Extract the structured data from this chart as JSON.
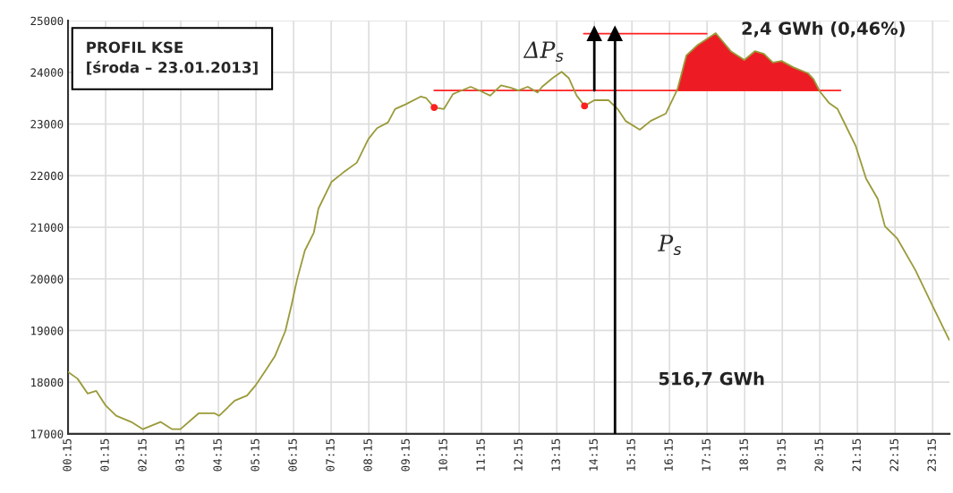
{
  "chart_data": {
    "type": "line",
    "title": "PROFIL KSE\n[środa – 23.01.2013]",
    "xlim": [
      0.25,
      23.7
    ],
    "ylim": [
      17000,
      25000
    ],
    "xticks": [
      {
        "value": 0.25,
        "label": "00:15"
      },
      {
        "value": 1.25,
        "label": "01:15"
      },
      {
        "value": 2.25,
        "label": "02:15"
      },
      {
        "value": 3.25,
        "label": "03:15"
      },
      {
        "value": 4.25,
        "label": "04:15"
      },
      {
        "value": 5.25,
        "label": "05:15"
      },
      {
        "value": 6.25,
        "label": "06:15"
      },
      {
        "value": 7.25,
        "label": "07:15"
      },
      {
        "value": 8.25,
        "label": "08:15"
      },
      {
        "value": 9.25,
        "label": "09:15"
      },
      {
        "value": 10.25,
        "label": "10:15"
      },
      {
        "value": 11.25,
        "label": "11:15"
      },
      {
        "value": 12.25,
        "label": "12:15"
      },
      {
        "value": 13.25,
        "label": "13:15"
      },
      {
        "value": 14.25,
        "label": "14:15"
      },
      {
        "value": 15.25,
        "label": "15:15"
      },
      {
        "value": 16.25,
        "label": "16:15"
      },
      {
        "value": 17.25,
        "label": "17:15"
      },
      {
        "value": 18.25,
        "label": "18:15"
      },
      {
        "value": 19.25,
        "label": "19:15"
      },
      {
        "value": 20.25,
        "label": "20:15"
      },
      {
        "value": 21.25,
        "label": "21:15"
      },
      {
        "value": 22.25,
        "label": "22:15"
      },
      {
        "value": 23.25,
        "label": "23:15"
      }
    ],
    "yticks": [
      17000,
      18000,
      19000,
      20000,
      21000,
      22000,
      23000,
      24000,
      25000
    ],
    "grid": true,
    "legend": false,
    "series": [
      {
        "color": "#ff2020",
        "x": [
          9.99,
          20.8
        ],
        "values": [
          23650,
          23650
        ]
      },
      {
        "type": "area",
        "color": "#ed1c24",
        "x": [
          16.46,
          16.7,
          17.0,
          17.29,
          17.48,
          17.88,
          18.24,
          18.52,
          18.76,
          19.0,
          19.23,
          19.54,
          19.94,
          20.08,
          20.25
        ],
        "values": [
          23670,
          24330,
          24530,
          24670,
          24760,
          24410,
          24240,
          24410,
          24360,
          24190,
          24220,
          24100,
          23980,
          23870,
          23650
        ]
      },
      {
        "color": "#9a9a3a",
        "x": [
          0.25,
          0.5,
          0.77,
          1.0,
          1.25,
          1.53,
          1.93,
          2.24,
          2.71,
          3.02,
          3.24,
          3.73,
          4.14,
          4.27,
          4.68,
          5.01,
          5.25,
          5.49,
          5.75,
          6.03,
          6.2,
          6.34,
          6.55,
          6.79,
          6.91,
          7.26,
          7.57,
          7.93,
          8.24,
          8.47,
          8.76,
          8.95,
          9.23,
          9.63,
          9.78,
          9.99,
          10.25,
          10.49,
          10.96,
          11.25,
          11.48,
          11.77,
          12.03,
          12.23,
          12.48,
          12.74,
          12.86,
          13.14,
          13.38,
          13.57,
          13.78,
          13.99,
          14.25,
          14.63,
          14.87,
          15.08,
          15.46,
          15.75,
          16.15,
          16.46,
          16.7,
          17.0,
          17.29,
          17.48,
          17.88,
          18.24,
          18.52,
          18.76,
          19.0,
          19.23,
          19.54,
          19.94,
          20.08,
          20.25,
          20.49,
          20.72,
          20.91,
          21.2,
          21.48,
          21.79,
          21.98,
          22.31,
          22.79,
          23.26,
          23.69
        ],
        "values": [
          18200,
          18070,
          17780,
          17830,
          17550,
          17350,
          17230,
          17090,
          17230,
          17090,
          17090,
          17400,
          17400,
          17350,
          17640,
          17740,
          17950,
          18210,
          18500,
          18990,
          19510,
          19980,
          20550,
          20900,
          21360,
          21880,
          22060,
          22250,
          22710,
          22920,
          23030,
          23290,
          23380,
          23530,
          23500,
          23320,
          23290,
          23580,
          23720,
          23630,
          23550,
          23750,
          23700,
          23650,
          23720,
          23610,
          23720,
          23890,
          24010,
          23890,
          23550,
          23350,
          23460,
          23460,
          23290,
          23060,
          22890,
          23060,
          23200,
          23670,
          24330,
          24530,
          24670,
          24760,
          24410,
          24240,
          24410,
          24360,
          24190,
          24220,
          24100,
          23980,
          23870,
          23630,
          23410,
          23290,
          23010,
          22580,
          21940,
          21550,
          21020,
          20780,
          20170,
          19460,
          18820
        ]
      },
      {
        "color": "#ff2020",
        "x": [
          13.97,
          17.24
        ],
        "values": [
          24750,
          24750
        ]
      },
      {
        "type": "scatter",
        "color": "#ff2020",
        "x": [
          9.99,
          13.99
        ],
        "values": [
          23320,
          23350
        ]
      },
      {
        "color": "#000000",
        "marker": "triangle",
        "x": [
          14.25,
          14.25
        ],
        "values": [
          23650,
          24750
        ]
      },
      {
        "color": "#000000",
        "marker": "triangle",
        "x": [
          14.8,
          14.8
        ],
        "values": [
          17000,
          24750
        ]
      }
    ],
    "annotations": [
      "ΔP$_{s}$",
      "P$_{s}$",
      "516,7 GWh",
      "2,4 GWh (0,46%)"
    ]
  }
}
